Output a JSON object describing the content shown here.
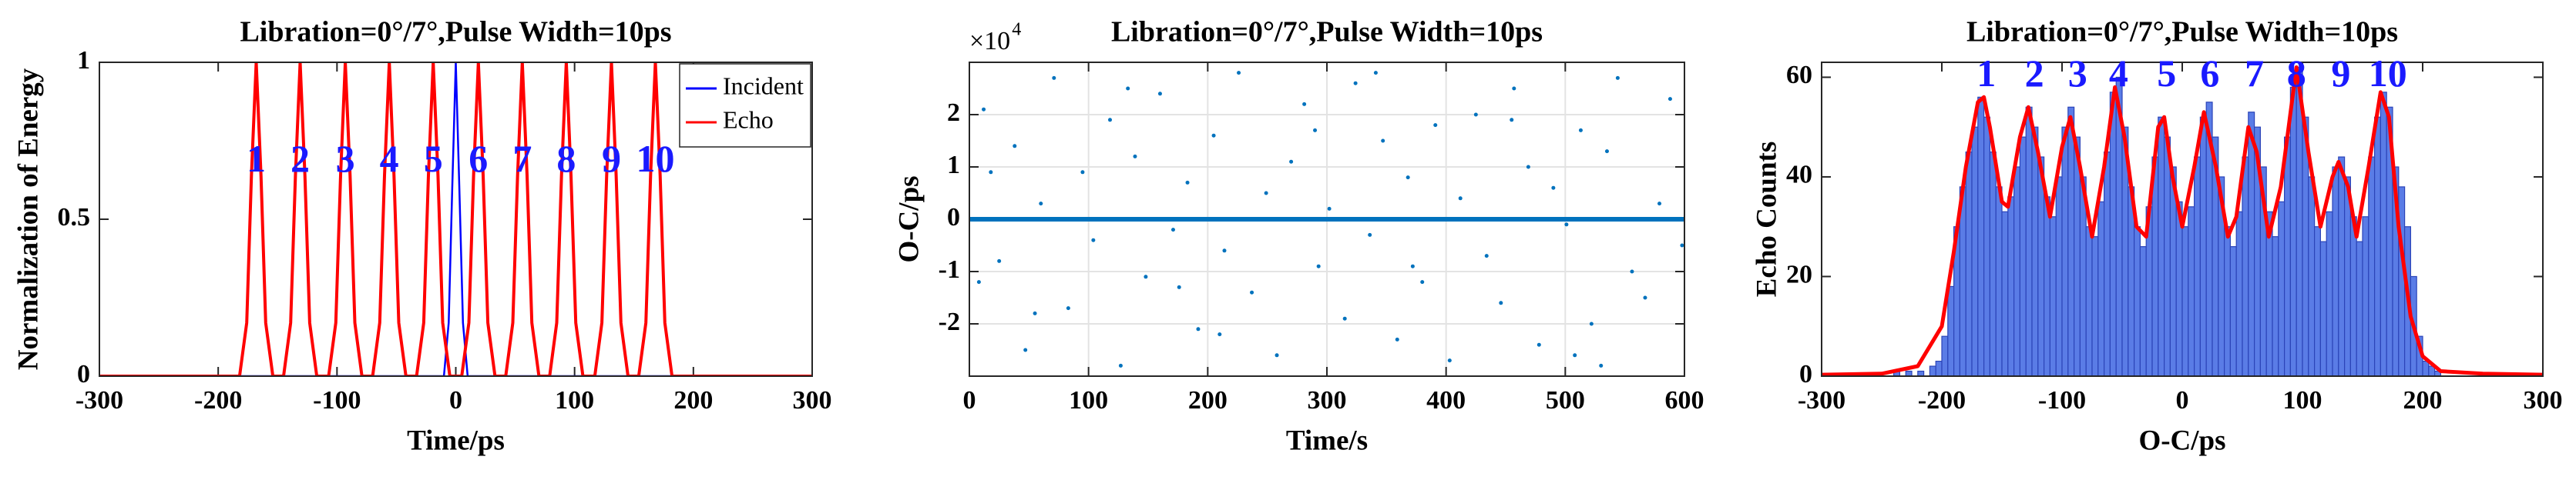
{
  "chart_data": [
    {
      "type": "line",
      "title": "Libration=0°/7°,Pulse Width=10ps",
      "x_label": "Time/ps",
      "y_label": "Normalization of Energy",
      "xlim": [
        -300,
        300
      ],
      "xticks": [
        -300,
        -200,
        -100,
        0,
        100,
        200,
        300
      ],
      "ylim": [
        0,
        1
      ],
      "yticks": [
        0,
        0.5,
        1
      ],
      "grid": false,
      "legend": "northeast",
      "series": [
        {
          "name": "Incident",
          "color": "#0000ff",
          "x": [
            -300,
            -10,
            -6,
            -3,
            0,
            3,
            6,
            10,
            300
          ],
          "values": [
            0,
            0,
            0.17,
            0.6,
            1,
            0.6,
            0.17,
            0,
            0
          ]
        },
        {
          "name": "Echo",
          "color": "#ff0000",
          "x": [
            -300,
            -182,
            -176,
            -172,
            -168,
            -164,
            -160,
            -154,
            -145,
            -139,
            -135,
            -131,
            -127,
            -123,
            -117,
            -107,
            -101,
            -97,
            -93,
            -89,
            -85,
            -79,
            -70,
            -64,
            -60,
            -56,
            -52,
            -48,
            -42,
            -33,
            -27,
            -23,
            -19,
            -15,
            -11,
            -5,
            5,
            11,
            15,
            19,
            23,
            27,
            33,
            42,
            48,
            52,
            56,
            60,
            64,
            70,
            79,
            85,
            89,
            93,
            97,
            101,
            107,
            117,
            123,
            127,
            131,
            135,
            139,
            145,
            154,
            160,
            164,
            168,
            172,
            176,
            182,
            300
          ],
          "values": [
            0,
            0,
            0.17,
            0.64,
            1,
            0.64,
            0.17,
            0,
            0,
            0.17,
            0.64,
            1,
            0.64,
            0.17,
            0,
            0,
            0.17,
            0.64,
            1,
            0.64,
            0.17,
            0,
            0,
            0.17,
            0.64,
            1,
            0.64,
            0.17,
            0,
            0,
            0.17,
            0.64,
            1,
            0.64,
            0.17,
            0,
            0,
            0.17,
            0.64,
            1,
            0.64,
            0.17,
            0,
            0,
            0.17,
            0.64,
            1,
            0.64,
            0.17,
            0,
            0,
            0.17,
            0.64,
            1,
            0.64,
            0.17,
            0,
            0,
            0.17,
            0.64,
            1,
            0.64,
            0.17,
            0,
            0,
            0.17,
            0.64,
            1,
            0.64,
            0.17,
            0,
            0
          ]
        }
      ],
      "annotation_color": "#1a1aff",
      "annotations": [
        {
          "text": "1",
          "x": -168,
          "y": 0.68
        },
        {
          "text": "2",
          "x": -131,
          "y": 0.68
        },
        {
          "text": "3",
          "x": -93,
          "y": 0.68
        },
        {
          "text": "4",
          "x": -56,
          "y": 0.68
        },
        {
          "text": "5",
          "x": -19,
          "y": 0.68
        },
        {
          "text": "6",
          "x": 19,
          "y": 0.68
        },
        {
          "text": "7",
          "x": 56,
          "y": 0.68
        },
        {
          "text": "8",
          "x": 93,
          "y": 0.68
        },
        {
          "text": "9",
          "x": 131,
          "y": 0.68
        },
        {
          "text": "10",
          "x": 168,
          "y": 0.68
        }
      ]
    },
    {
      "type": "scatter",
      "title": "Libration=0°/7°,Pulse Width=10ps",
      "x_label": "Time/s",
      "y_label": "O-C/ps",
      "y_multiplier": "×10",
      "y_multiplier_exponent": "4",
      "xlim": [
        0,
        600
      ],
      "xticks": [
        0,
        100,
        200,
        300,
        400,
        500,
        600
      ],
      "ylim": [
        -30000,
        30000
      ],
      "yticks": [
        {
          "value": -20000,
          "label": "-2"
        },
        {
          "value": -10000,
          "label": "-1"
        },
        0,
        {
          "value": 10000,
          "label": "1"
        },
        {
          "value": 20000,
          "label": "2"
        }
      ],
      "grid": true,
      "series": [
        {
          "color": "#0072bd",
          "x": [
            12,
            25,
            38,
            47,
            60,
            71,
            83,
            95,
            104,
            118,
            127,
            139,
            148,
            160,
            171,
            183,
            192,
            205,
            214,
            226,
            237,
            249,
            258,
            270,
            281,
            293,
            302,
            315,
            324,
            336,
            347,
            359,
            368,
            380,
            391,
            403,
            412,
            425,
            434,
            446,
            457,
            469,
            478,
            490,
            501,
            513,
            522,
            535,
            544,
            556,
            567,
            579,
            588,
            598,
            8,
            55,
            133,
            210,
            290,
            372,
            455,
            530,
            18,
            176,
            341,
            508
          ],
          "values": [
            21000,
            -8000,
            14000,
            -25000,
            3000,
            27000,
            -17000,
            9000,
            -4000,
            19000,
            -28000,
            12000,
            -11000,
            24000,
            -2000,
            7000,
            -21000,
            16000,
            -6000,
            28000,
            -14000,
            5000,
            -26000,
            11000,
            22000,
            -9000,
            2000,
            -19000,
            26000,
            -3000,
            15000,
            -23000,
            8000,
            -12000,
            18000,
            -27000,
            4000,
            20000,
            -7000,
            -16000,
            25000,
            10000,
            -24000,
            6000,
            -1000,
            17000,
            -20000,
            13000,
            27000,
            -10000,
            -15000,
            3000,
            23000,
            -5000,
            -12000,
            -18000,
            25000,
            -22000,
            17000,
            -9000,
            19000,
            -28000,
            9000,
            -13000,
            28000,
            -26000
          ]
        },
        {
          "color": "#0072bd",
          "mode": "line",
          "x": [
            0,
            600
          ],
          "values": [
            0,
            0
          ]
        }
      ]
    },
    {
      "type": "histogram",
      "title": "Libration=0°/7°,Pulse Width=10ps",
      "x_label": "O-C/ps",
      "y_label": "Echo Counts",
      "xlim": [
        -300,
        300
      ],
      "xticks": [
        -300,
        -200,
        -100,
        0,
        100,
        200,
        300
      ],
      "ylim": [
        0,
        63
      ],
      "yticks": [
        0,
        20,
        40,
        60
      ],
      "grid": false,
      "color": "#5a7ce6",
      "edge_color": "#2b44b8",
      "bins": [
        -240,
        -235,
        -230,
        -225,
        -220,
        -215,
        -210,
        -205,
        -200,
        -195,
        -190,
        -185,
        -180,
        -175,
        -170,
        -165,
        -160,
        -155,
        -150,
        -145,
        -140,
        -135,
        -130,
        -125,
        -120,
        -115,
        -110,
        -105,
        -100,
        -95,
        -90,
        -85,
        -80,
        -75,
        -70,
        -65,
        -60,
        -55,
        -50,
        -45,
        -40,
        -35,
        -30,
        -25,
        -20,
        -15,
        -10,
        -5,
        0,
        5,
        10,
        15,
        20,
        25,
        30,
        35,
        40,
        45,
        50,
        55,
        60,
        65,
        70,
        75,
        80,
        85,
        90,
        95,
        100,
        105,
        110,
        115,
        120,
        125,
        130,
        135,
        140,
        145,
        150,
        155,
        160,
        165,
        170,
        175,
        180,
        185,
        190,
        195,
        200,
        205,
        210,
        215
      ],
      "counts": [
        1,
        0,
        1,
        0,
        1,
        0,
        2,
        3,
        8,
        18,
        30,
        38,
        45,
        50,
        56,
        52,
        45,
        38,
        33,
        36,
        42,
        48,
        54,
        50,
        44,
        36,
        32,
        40,
        50,
        54,
        48,
        40,
        30,
        28,
        35,
        45,
        57,
        60,
        50,
        38,
        30,
        26,
        34,
        44,
        52,
        48,
        42,
        35,
        30,
        34,
        44,
        52,
        55,
        48,
        40,
        30,
        26,
        33,
        44,
        53,
        50,
        42,
        33,
        28,
        35,
        48,
        58,
        62,
        52,
        40,
        30,
        27,
        33,
        42,
        44,
        40,
        32,
        27,
        32,
        44,
        52,
        57,
        54,
        42,
        38,
        30,
        20,
        8,
        3,
        2,
        1
      ],
      "fit": {
        "color": "#ff0000",
        "x": [
          -300,
          -250,
          -220,
          -200,
          -190,
          -180,
          -170,
          -165,
          -160,
          -150,
          -145,
          -135,
          -128,
          -120,
          -110,
          -100,
          -93,
          -85,
          -75,
          -65,
          -56,
          -48,
          -38,
          -30,
          -20,
          -15,
          -8,
          0,
          10,
          18,
          28,
          38,
          45,
          55,
          62,
          72,
          82,
          95,
          105,
          115,
          125,
          130,
          138,
          145,
          155,
          165,
          172,
          180,
          190,
          200,
          215,
          250,
          300
        ],
        "values": [
          0.3,
          0.5,
          2,
          10,
          25,
          42,
          55,
          56,
          50,
          35,
          34,
          48,
          54,
          45,
          32,
          46,
          52,
          42,
          28,
          42,
          58,
          48,
          30,
          28,
          50,
          52,
          40,
          30,
          42,
          53,
          42,
          28,
          32,
          50,
          45,
          28,
          38,
          62,
          45,
          30,
          40,
          43,
          38,
          28,
          42,
          57,
          52,
          30,
          12,
          4,
          1,
          0.5,
          0.3
        ]
      },
      "annotation_color": "#1a1aff",
      "annotations": [
        {
          "text": "1",
          "x": -163,
          "y": 60
        },
        {
          "text": "2",
          "x": -123,
          "y": 60
        },
        {
          "text": "3",
          "x": -87,
          "y": 60
        },
        {
          "text": "4",
          "x": -53,
          "y": 60
        },
        {
          "text": "5",
          "x": -13,
          "y": 60
        },
        {
          "text": "6",
          "x": 23,
          "y": 60
        },
        {
          "text": "7",
          "x": 60,
          "y": 60
        },
        {
          "text": "8",
          "x": 95,
          "y": 60
        },
        {
          "text": "9",
          "x": 132,
          "y": 60
        },
        {
          "text": "10",
          "x": 171,
          "y": 60
        }
      ]
    }
  ]
}
